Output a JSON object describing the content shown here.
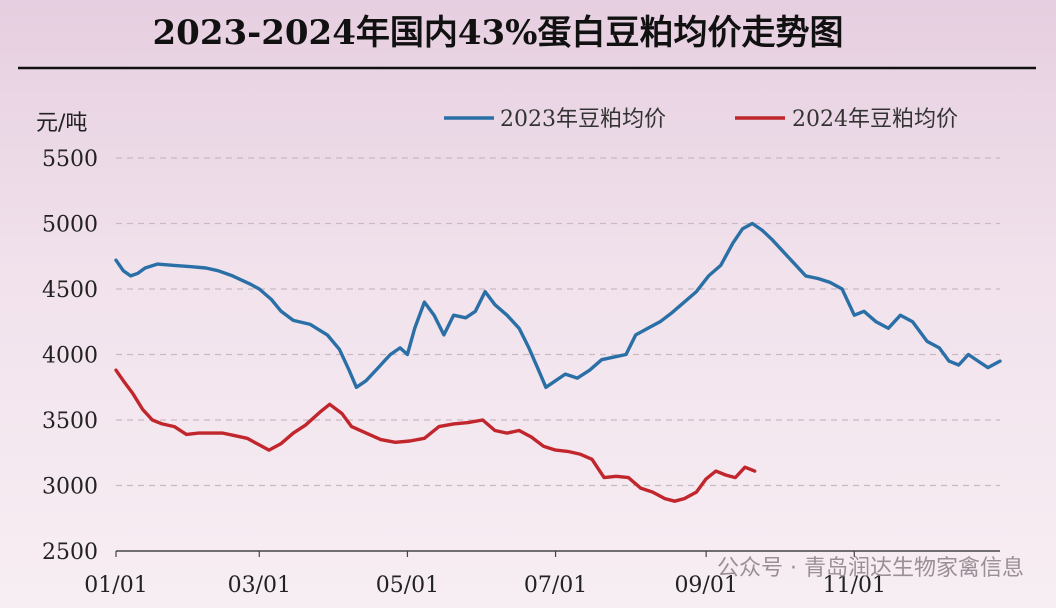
{
  "chart_data": {
    "type": "line",
    "title": "2023-2024年国内43%蛋白豆粕均价走势图",
    "ylabel": "元/吨",
    "xlabel": "",
    "ylim": [
      2500,
      5500
    ],
    "yticks": [
      2500,
      3000,
      3500,
      4000,
      4500,
      5000,
      5500
    ],
    "x_range": [
      "01/01",
      "12/31"
    ],
    "x_ticks": [
      {
        "label": "01/01",
        "date": "01/01"
      },
      {
        "label": "03/01",
        "date": "03/01"
      },
      {
        "label": "05/01",
        "date": "05/01"
      },
      {
        "label": "07/01",
        "date": "07/01"
      },
      {
        "label": "09/01",
        "date": "09/01"
      },
      {
        "label": "11/01",
        "date": "11/01"
      }
    ],
    "grid": "horizontal dashed",
    "legend_position": "top-right",
    "series": [
      {
        "name": "2023年豆粕均价",
        "color": "#2a6fa6",
        "points": [
          [
            "01/01",
            4720
          ],
          [
            "01/04",
            4640
          ],
          [
            "01/07",
            4600
          ],
          [
            "01/10",
            4620
          ],
          [
            "01/13",
            4660
          ],
          [
            "01/18",
            4690
          ],
          [
            "01/25",
            4680
          ],
          [
            "02/01",
            4670
          ],
          [
            "02/07",
            4660
          ],
          [
            "02/12",
            4640
          ],
          [
            "02/18",
            4600
          ],
          [
            "02/25",
            4540
          ],
          [
            "03/01",
            4500
          ],
          [
            "03/06",
            4420
          ],
          [
            "03/10",
            4330
          ],
          [
            "03/15",
            4260
          ],
          [
            "03/22",
            4230
          ],
          [
            "03/29",
            4150
          ],
          [
            "04/03",
            4040
          ],
          [
            "04/07",
            3880
          ],
          [
            "04/10",
            3750
          ],
          [
            "04/14",
            3800
          ],
          [
            "04/19",
            3900
          ],
          [
            "04/24",
            4000
          ],
          [
            "04/28",
            4050
          ],
          [
            "05/01",
            4000
          ],
          [
            "05/04",
            4200
          ],
          [
            "05/08",
            4400
          ],
          [
            "05/12",
            4300
          ],
          [
            "05/16",
            4150
          ],
          [
            "05/20",
            4300
          ],
          [
            "05/25",
            4280
          ],
          [
            "05/29",
            4330
          ],
          [
            "06/02",
            4480
          ],
          [
            "06/06",
            4380
          ],
          [
            "06/11",
            4300
          ],
          [
            "06/16",
            4200
          ],
          [
            "06/20",
            4050
          ],
          [
            "06/24",
            3880
          ],
          [
            "06/27",
            3750
          ],
          [
            "07/01",
            3800
          ],
          [
            "07/05",
            3850
          ],
          [
            "07/10",
            3820
          ],
          [
            "07/15",
            3880
          ],
          [
            "07/20",
            3960
          ],
          [
            "07/25",
            3980
          ],
          [
            "07/30",
            4000
          ],
          [
            "08/03",
            4150
          ],
          [
            "08/08",
            4200
          ],
          [
            "08/13",
            4250
          ],
          [
            "08/18",
            4320
          ],
          [
            "08/23",
            4400
          ],
          [
            "08/28",
            4480
          ],
          [
            "09/02",
            4600
          ],
          [
            "09/07",
            4680
          ],
          [
            "09/12",
            4850
          ],
          [
            "09/16",
            4960
          ],
          [
            "09/20",
            5000
          ],
          [
            "09/24",
            4950
          ],
          [
            "09/28",
            4880
          ],
          [
            "10/02",
            4800
          ],
          [
            "10/07",
            4700
          ],
          [
            "10/12",
            4600
          ],
          [
            "10/17",
            4580
          ],
          [
            "10/22",
            4550
          ],
          [
            "10/27",
            4500
          ],
          [
            "11/01",
            4300
          ],
          [
            "11/05",
            4330
          ],
          [
            "11/10",
            4250
          ],
          [
            "11/15",
            4200
          ],
          [
            "11/20",
            4300
          ],
          [
            "11/25",
            4250
          ],
          [
            "12/01",
            4100
          ],
          [
            "12/06",
            4050
          ],
          [
            "12/10",
            3950
          ],
          [
            "12/14",
            3920
          ],
          [
            "12/18",
            4000
          ],
          [
            "12/22",
            3950
          ],
          [
            "12/26",
            3900
          ],
          [
            "12/31",
            3950
          ]
        ]
      },
      {
        "name": "2024年豆粕均价",
        "color": "#c0262c",
        "points": [
          [
            "01/01",
            3880
          ],
          [
            "01/04",
            3800
          ],
          [
            "01/08",
            3700
          ],
          [
            "01/12",
            3580
          ],
          [
            "01/16",
            3500
          ],
          [
            "01/20",
            3470
          ],
          [
            "01/25",
            3450
          ],
          [
            "01/30",
            3390
          ],
          [
            "02/04",
            3400
          ],
          [
            "02/09",
            3400
          ],
          [
            "02/14",
            3400
          ],
          [
            "02/19",
            3380
          ],
          [
            "02/24",
            3360
          ],
          [
            "03/01",
            3310
          ],
          [
            "03/05",
            3270
          ],
          [
            "03/10",
            3320
          ],
          [
            "03/15",
            3400
          ],
          [
            "03/20",
            3460
          ],
          [
            "03/26",
            3560
          ],
          [
            "03/30",
            3620
          ],
          [
            "04/04",
            3550
          ],
          [
            "04/08",
            3450
          ],
          [
            "04/14",
            3400
          ],
          [
            "04/20",
            3350
          ],
          [
            "04/26",
            3330
          ],
          [
            "05/02",
            3340
          ],
          [
            "05/08",
            3360
          ],
          [
            "05/14",
            3450
          ],
          [
            "05/20",
            3470
          ],
          [
            "05/26",
            3480
          ],
          [
            "06/01",
            3500
          ],
          [
            "06/06",
            3420
          ],
          [
            "06/11",
            3400
          ],
          [
            "06/16",
            3420
          ],
          [
            "06/21",
            3370
          ],
          [
            "06/26",
            3300
          ],
          [
            "07/01",
            3270
          ],
          [
            "07/06",
            3260
          ],
          [
            "07/11",
            3240
          ],
          [
            "07/16",
            3200
          ],
          [
            "07/21",
            3060
          ],
          [
            "07/26",
            3070
          ],
          [
            "07/31",
            3060
          ],
          [
            "08/05",
            2980
          ],
          [
            "08/10",
            2950
          ],
          [
            "08/15",
            2900
          ],
          [
            "08/19",
            2880
          ],
          [
            "08/23",
            2900
          ],
          [
            "08/28",
            2950
          ],
          [
            "09/01",
            3050
          ],
          [
            "09/05",
            3110
          ],
          [
            "09/09",
            3080
          ],
          [
            "09/13",
            3060
          ],
          [
            "09/17",
            3140
          ],
          [
            "09/21",
            3110
          ]
        ]
      }
    ]
  },
  "watermark": "公众号 · 青岛润达生物家禽信息"
}
